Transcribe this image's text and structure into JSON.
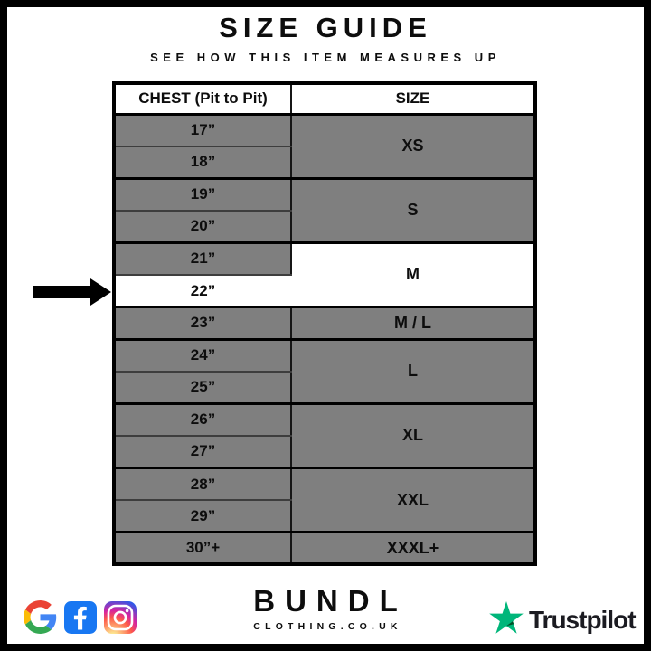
{
  "header": {
    "title": "SIZE GUIDE",
    "subtitle": "SEE HOW THIS ITEM MEASURES UP"
  },
  "chart_data": {
    "type": "table",
    "title": "SIZE GUIDE",
    "subtitle": "SEE HOW THIS ITEM MEASURES UP",
    "columns": [
      "CHEST (Pit to Pit)",
      "SIZE"
    ],
    "groups": [
      {
        "size": "XS",
        "chest": [
          "17”",
          "18”"
        ]
      },
      {
        "size": "S",
        "chest": [
          "19”",
          "20”"
        ]
      },
      {
        "size": "M",
        "chest": [
          "21”",
          "22”"
        ]
      },
      {
        "size": "M / L",
        "chest": [
          "23”"
        ]
      },
      {
        "size": "L",
        "chest": [
          "24”",
          "25”"
        ]
      },
      {
        "size": "XL",
        "chest": [
          "26”",
          "27”"
        ]
      },
      {
        "size": "XXL",
        "chest": [
          "28”",
          "29”"
        ]
      },
      {
        "size": "XXXL+",
        "chest": [
          "30”+"
        ]
      }
    ],
    "highlight": {
      "chest": "22”",
      "size": "M",
      "indicator": "black arrow pointing right at highlighted chest row"
    }
  },
  "footer": {
    "brand_name": "BUNDL",
    "brand_domain": "CLOTHING.CO.UK",
    "trustpilot_label": "Trustpilot",
    "social_icons": [
      "google-icon",
      "facebook-icon",
      "instagram-icon"
    ]
  },
  "colors": {
    "row_gray": "#7f7f7f",
    "highlight_white": "#ffffff",
    "border_black": "#000000",
    "facebook_blue": "#1877f2",
    "trustpilot_green": "#00b67a",
    "trustpilot_dark_green": "#005128"
  }
}
